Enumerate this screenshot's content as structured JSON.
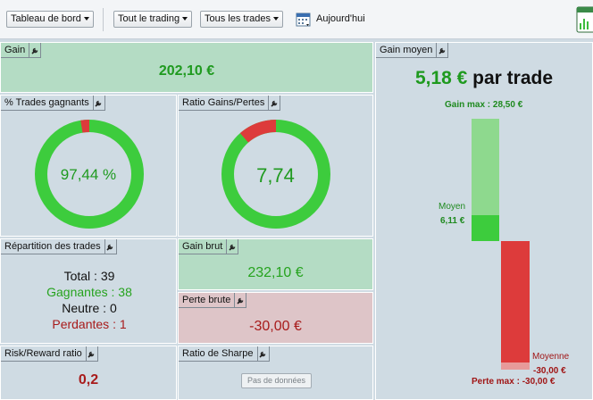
{
  "toolbar": {
    "dashboard": "Tableau de bord",
    "trading": "Tout le trading",
    "trades": "Tous les trades",
    "today": "Aujourd'hui"
  },
  "panels": {
    "gain": {
      "title": "Gain",
      "value": "202,10 €"
    },
    "win_pct": {
      "title": "% Trades gagnants",
      "value": "97,44 %",
      "ratio": 0.9744
    },
    "ratio_gp": {
      "title": "Ratio Gains/Pertes",
      "value": "7,74",
      "gain_share": 0.8855
    },
    "repartition": {
      "title": "Répartition des trades",
      "rows": [
        {
          "label": "Total : 39"
        },
        {
          "label": "Gagnantes : 38"
        },
        {
          "label": "Neutre : 0"
        },
        {
          "label": "Perdantes : 1"
        }
      ]
    },
    "gain_brut": {
      "title": "Gain brut",
      "value": "232,10 €"
    },
    "perte_brute": {
      "title": "Perte brute",
      "value": "-30,00 €"
    },
    "risk_reward": {
      "title": "Risk/Reward ratio",
      "value": "0,2"
    },
    "sharpe": {
      "title": "Ratio de Sharpe",
      "nodata": "Pas de données"
    },
    "gain_moyen": {
      "title": "Gain moyen",
      "value": "5,18 €",
      "suffix": "par trade",
      "gain_max_label": "Gain max : 28,50 €",
      "avg_gain_label": "Moyen",
      "avg_gain_value": "6,11 €",
      "avg_loss_label": "Moyenne",
      "avg_loss_value": "-30,00 €",
      "loss_max_label": "Perte max : -30,00 €",
      "gain_max": 28.5,
      "avg_gain": 6.11,
      "avg_loss": -30.0,
      "loss_max": -30.0
    }
  },
  "colors": {
    "green": "#3dcc3d",
    "green_light": "#8ed98e",
    "red": "#dd3b3b",
    "red_light": "#e79a9a",
    "text_green": "#1f9a1f",
    "text_red": "#a81b1b"
  }
}
